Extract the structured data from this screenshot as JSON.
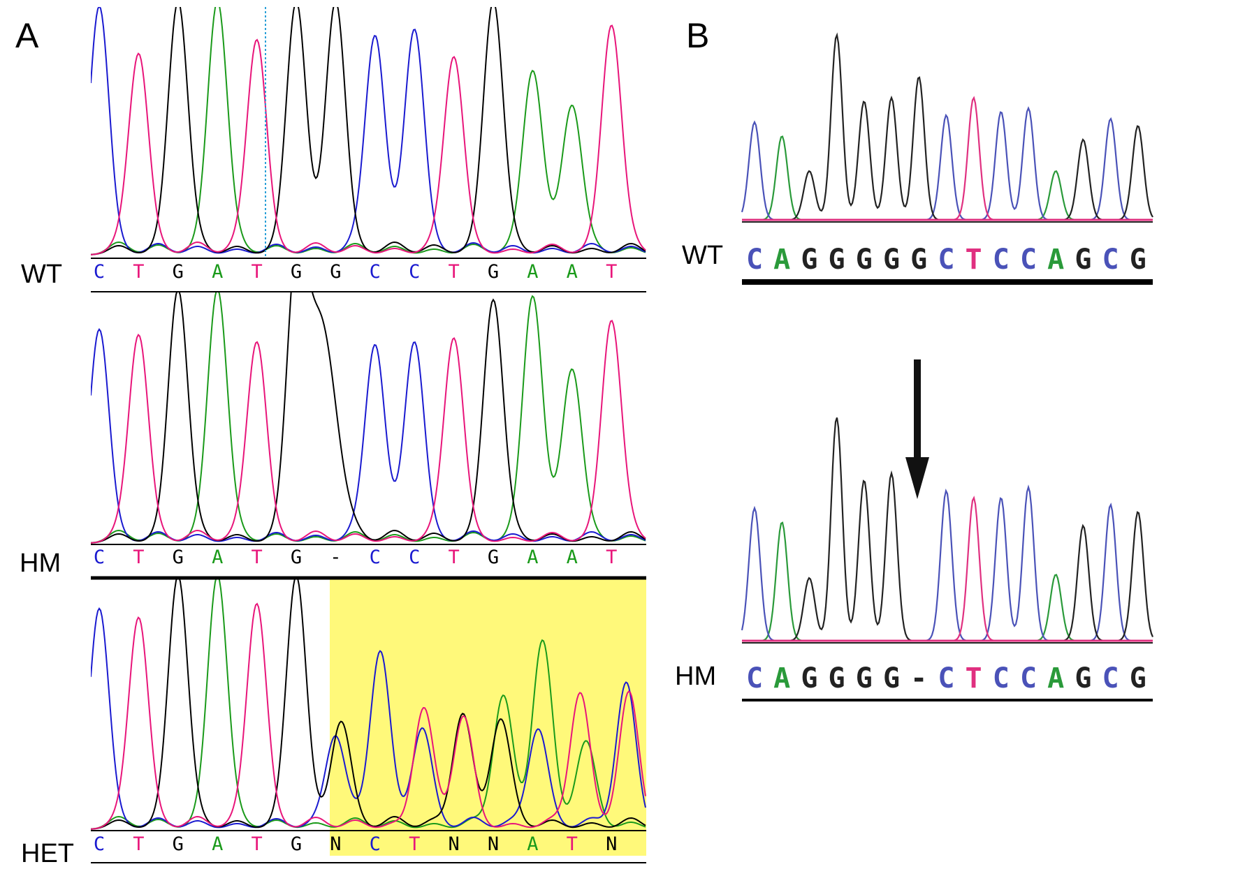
{
  "colors": {
    "A": "#1a9a1a",
    "C": "#1a1ad0",
    "G": "#000000",
    "T": "#e8157a",
    "N": "#000000",
    "-": "#000000",
    "highlight": "#fff97a"
  },
  "colors_b": {
    "A": "#2a9a3a",
    "C": "#4a52b8",
    "G": "#222222",
    "T": "#e03080",
    "-": "#222222"
  },
  "panel_a": {
    "letter": "A",
    "rows": [
      {
        "label": "WT",
        "bases": [
          "C",
          "T",
          "G",
          "A",
          "T",
          "G",
          "G",
          "C",
          "C",
          "T",
          "G",
          "A",
          "A",
          "T"
        ]
      },
      {
        "label": "HM",
        "bases": [
          "C",
          "T",
          "G",
          "A",
          "T",
          "G",
          "-",
          "C",
          "C",
          "T",
          "G",
          "A",
          "A",
          "T"
        ]
      },
      {
        "label": "HET",
        "bases": [
          "C",
          "T",
          "G",
          "A",
          "T",
          "G",
          "N",
          "C",
          "T",
          "N",
          "N",
          "A",
          "T",
          "N"
        ]
      }
    ]
  },
  "panel_b": {
    "letter": "B",
    "rows": [
      {
        "label": "WT",
        "bases": [
          "C",
          "A",
          "G",
          "G",
          "G",
          "G",
          "G",
          "C",
          "T",
          "C",
          "C",
          "A",
          "G",
          "C",
          "G"
        ]
      },
      {
        "label": "HM",
        "bases": [
          "C",
          "A",
          "G",
          "G",
          "G",
          "G",
          "-",
          "C",
          "T",
          "C",
          "C",
          "A",
          "G",
          "C",
          "G"
        ]
      }
    ]
  }
}
